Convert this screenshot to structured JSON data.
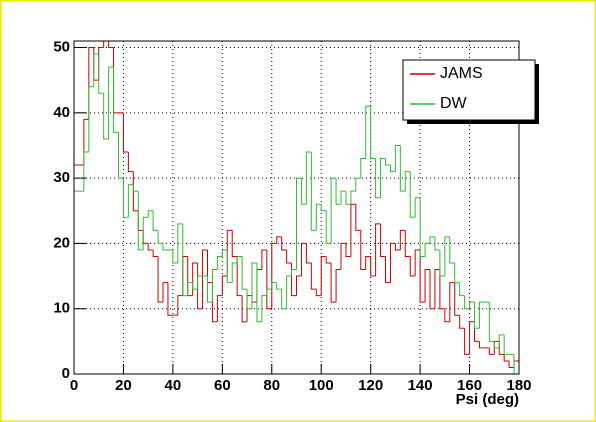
{
  "chart_data": {
    "type": "histogram",
    "x_label": "Psi (deg)",
    "bins": [
      0,
      2,
      4,
      6,
      8,
      10,
      12,
      14,
      16,
      18,
      20,
      22,
      24,
      26,
      28,
      30,
      32,
      34,
      36,
      38,
      40,
      42,
      44,
      46,
      48,
      50,
      52,
      54,
      56,
      58,
      60,
      62,
      64,
      66,
      68,
      70,
      72,
      74,
      76,
      78,
      80,
      82,
      84,
      86,
      88,
      90,
      92,
      94,
      96,
      98,
      100,
      102,
      104,
      106,
      108,
      110,
      112,
      114,
      116,
      118,
      120,
      122,
      124,
      126,
      128,
      130,
      132,
      134,
      136,
      138,
      140,
      142,
      144,
      146,
      148,
      150,
      152,
      154,
      156,
      158,
      160,
      162,
      164,
      166,
      168,
      170,
      172,
      174,
      176,
      178,
      180
    ],
    "series": [
      {
        "name": "JAMS",
        "color": "#cc0000",
        "values": [
          32,
          32,
          39,
          50,
          45,
          50,
          51,
          50,
          40,
          40,
          34,
          31,
          25,
          22,
          20,
          19,
          18,
          11,
          14,
          9,
          9,
          12,
          18,
          12,
          17,
          10,
          19,
          14,
          8,
          12,
          15,
          22,
          18,
          12,
          8,
          12,
          11,
          16,
          19,
          10,
          20,
          21,
          19,
          17,
          12,
          15,
          20,
          17,
          13,
          12,
          18,
          17,
          11,
          16,
          20,
          18,
          26,
          22,
          16,
          18,
          15,
          23,
          18,
          14,
          20,
          19,
          22,
          18,
          15,
          19,
          11,
          16,
          10,
          16,
          10,
          8,
          14,
          9,
          7,
          3,
          8,
          5,
          4,
          4,
          3,
          5,
          3,
          2,
          1,
          2
        ]
      },
      {
        "name": "DW",
        "color": "#33bb33",
        "values": [
          28,
          28,
          34,
          44,
          49,
          43,
          36,
          47,
          37,
          30,
          24,
          29,
          28,
          19,
          24,
          25,
          22,
          20,
          19,
          19,
          17,
          23,
          12,
          14,
          13,
          15,
          15,
          11,
          16,
          18,
          19,
          14,
          17,
          18,
          13,
          10,
          17,
          8,
          12,
          13,
          14,
          13,
          10,
          15,
          16,
          30,
          26,
          34,
          22,
          26,
          25,
          20,
          30,
          26,
          28,
          26,
          28,
          30,
          33,
          41,
          33,
          27,
          33,
          32,
          31,
          35,
          28,
          31,
          24,
          27,
          18,
          20,
          21,
          19,
          15,
          21,
          17,
          14,
          12,
          10,
          11,
          7,
          11,
          11,
          5,
          4,
          6,
          3,
          3,
          0
        ]
      }
    ],
    "xlim": [
      0,
      180
    ],
    "ylim": [
      0,
      51
    ],
    "xticks": [
      0,
      20,
      40,
      60,
      80,
      100,
      120,
      140,
      160,
      180
    ],
    "yticks": [
      0,
      10,
      20,
      30,
      40,
      50
    ],
    "grid": true
  }
}
